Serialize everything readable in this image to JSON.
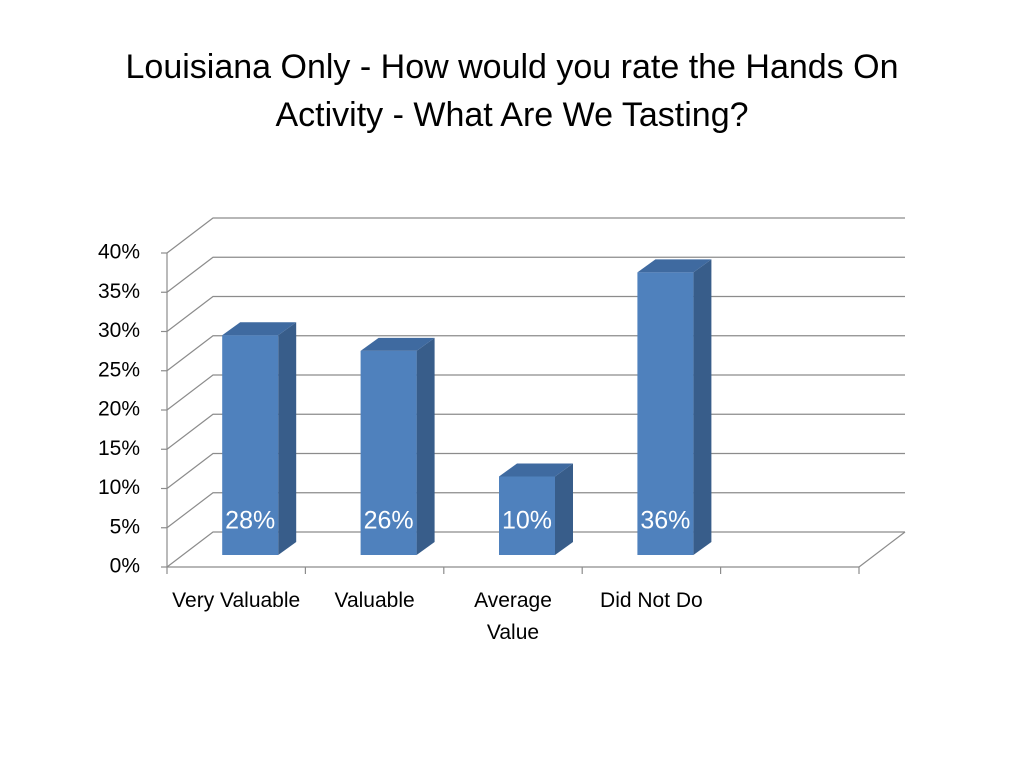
{
  "chart_data": {
    "type": "bar3d",
    "title": "Louisiana Only - How would you rate the Hands On Activity - What Are We Tasting?",
    "categories": [
      "Very Valuable",
      "Valuable",
      "Average Value",
      "Did Not Do",
      null
    ],
    "values": [
      28,
      26,
      10,
      36,
      null
    ],
    "value_labels": [
      "28%",
      "26%",
      "10%",
      "36%",
      null
    ],
    "color": "#4f81bd",
    "ylim": [
      0,
      40
    ],
    "yticks": [
      {
        "value": 0,
        "label": "0%"
      },
      {
        "value": 5,
        "label": "5%"
      },
      {
        "value": 10,
        "label": "10%"
      },
      {
        "value": 15,
        "label": "15%"
      },
      {
        "value": 20,
        "label": "20%"
      },
      {
        "value": 25,
        "label": "25%"
      },
      {
        "value": 30,
        "label": "30%"
      },
      {
        "value": 35,
        "label": "35%"
      },
      {
        "value": 40,
        "label": "40%"
      }
    ],
    "grid": true
  }
}
